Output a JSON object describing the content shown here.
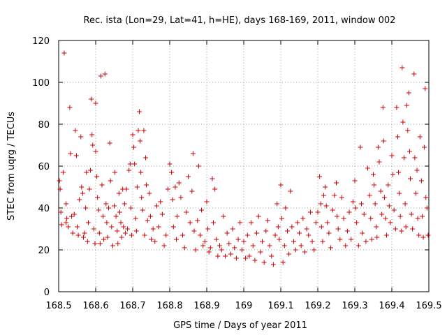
{
  "chart_data": {
    "type": "scatter",
    "title": "Rec. ista (Lon=29, Lat=41, h=HE), days 168-169, 2011, window 002",
    "xlabel": "GPS time / Days of year 2011",
    "ylabel": "STEC from uqrg / TECUs",
    "xlim": [
      168.5,
      169.5
    ],
    "ylim": [
      0,
      120
    ],
    "xticks": [
      168.5,
      168.6,
      168.7,
      168.8,
      168.9,
      169,
      169.1,
      169.2,
      169.3,
      169.4,
      169.5
    ],
    "xtick_labels": [
      "168.5",
      "168.6",
      "168.7",
      "168.8",
      "168.9",
      "169",
      "169.1",
      "169.2",
      "169.3",
      "169.4",
      "169.5"
    ],
    "yticks": [
      0,
      20,
      40,
      60,
      80,
      100,
      120
    ],
    "ytick_labels": [
      "0",
      "20",
      "40",
      "60",
      "80",
      "100",
      "120"
    ],
    "grid": true,
    "legend": "none",
    "marker": "plus",
    "color": "#cc0000",
    "points": [
      [
        168.502,
        53
      ],
      [
        168.504,
        49
      ],
      [
        168.506,
        38
      ],
      [
        168.508,
        32
      ],
      [
        168.512,
        57
      ],
      [
        168.515,
        114
      ],
      [
        168.52,
        42
      ],
      [
        168.52,
        33
      ],
      [
        168.522,
        35
      ],
      [
        168.526,
        31
      ],
      [
        168.53,
        88
      ],
      [
        168.532,
        66
      ],
      [
        168.535,
        36
      ],
      [
        168.538,
        28
      ],
      [
        168.542,
        37
      ],
      [
        168.545,
        77
      ],
      [
        168.548,
        65
      ],
      [
        168.55,
        31
      ],
      [
        168.553,
        27
      ],
      [
        168.556,
        44
      ],
      [
        168.56,
        74
      ],
      [
        168.562,
        50
      ],
      [
        168.565,
        47
      ],
      [
        168.567,
        26
      ],
      [
        168.57,
        28
      ],
      [
        168.573,
        40
      ],
      [
        168.575,
        57
      ],
      [
        168.578,
        24
      ],
      [
        168.58,
        33
      ],
      [
        168.583,
        49
      ],
      [
        168.586,
        58
      ],
      [
        168.588,
        92
      ],
      [
        168.59,
        75
      ],
      [
        168.592,
        70
      ],
      [
        168.595,
        30
      ],
      [
        168.598,
        23
      ],
      [
        168.6,
        90
      ],
      [
        168.6,
        67
      ],
      [
        168.603,
        55
      ],
      [
        168.605,
        45
      ],
      [
        168.608,
        39
      ],
      [
        168.61,
        28
      ],
      [
        168.612,
        23
      ],
      [
        168.614,
        103
      ],
      [
        168.617,
        51
      ],
      [
        168.62,
        36
      ],
      [
        168.622,
        25
      ],
      [
        168.625,
        104
      ],
      [
        168.628,
        42
      ],
      [
        168.63,
        33
      ],
      [
        168.632,
        26
      ],
      [
        168.635,
        40
      ],
      [
        168.638,
        71
      ],
      [
        168.64,
        53
      ],
      [
        168.643,
        31
      ],
      [
        168.646,
        22
      ],
      [
        168.65,
        41
      ],
      [
        168.652,
        57
      ],
      [
        168.655,
        36
      ],
      [
        168.658,
        29
      ],
      [
        168.66,
        23
      ],
      [
        168.663,
        47
      ],
      [
        168.665,
        38
      ],
      [
        168.668,
        33
      ],
      [
        168.67,
        26
      ],
      [
        168.673,
        49
      ],
      [
        168.675,
        31
      ],
      [
        168.678,
        42
      ],
      [
        168.68,
        28
      ],
      [
        168.683,
        49
      ],
      [
        168.686,
        30
      ],
      [
        168.69,
        58
      ],
      [
        168.693,
        61
      ],
      [
        168.695,
        40
      ],
      [
        168.697,
        27
      ],
      [
        168.7,
        75
      ],
      [
        168.703,
        69
      ],
      [
        168.705,
        61
      ],
      [
        168.708,
        35
      ],
      [
        168.71,
        29
      ],
      [
        168.712,
        50
      ],
      [
        168.715,
        77
      ],
      [
        168.718,
        86
      ],
      [
        168.72,
        72
      ],
      [
        168.722,
        57
      ],
      [
        168.724,
        45
      ],
      [
        168.727,
        39
      ],
      [
        168.73,
        77
      ],
      [
        168.732,
        27
      ],
      [
        168.735,
        64
      ],
      [
        168.737,
        51
      ],
      [
        168.74,
        34
      ],
      [
        168.745,
        47
      ],
      [
        168.748,
        36
      ],
      [
        168.75,
        25
      ],
      [
        168.755,
        30
      ],
      [
        168.76,
        24
      ],
      [
        168.765,
        41
      ],
      [
        168.77,
        31
      ],
      [
        168.775,
        43
      ],
      [
        168.78,
        37
      ],
      [
        168.785,
        22
      ],
      [
        168.79,
        27
      ],
      [
        168.795,
        49
      ],
      [
        168.8,
        61
      ],
      [
        168.805,
        57
      ],
      [
        168.808,
        44
      ],
      [
        168.81,
        31
      ],
      [
        168.815,
        50
      ],
      [
        168.818,
        25
      ],
      [
        168.82,
        36
      ],
      [
        168.825,
        52
      ],
      [
        168.83,
        45
      ],
      [
        168.835,
        27
      ],
      [
        168.84,
        21
      ],
      [
        168.845,
        38
      ],
      [
        168.85,
        55
      ],
      [
        168.855,
        33
      ],
      [
        168.86,
        48
      ],
      [
        168.863,
        66
      ],
      [
        168.866,
        29
      ],
      [
        168.87,
        20
      ],
      [
        168.875,
        34
      ],
      [
        168.878,
        60
      ],
      [
        168.882,
        27
      ],
      [
        168.886,
        39
      ],
      [
        168.89,
        22
      ],
      [
        168.895,
        24
      ],
      [
        168.9,
        43
      ],
      [
        168.903,
        30
      ],
      [
        168.906,
        19
      ],
      [
        168.91,
        21
      ],
      [
        168.915,
        54
      ],
      [
        168.918,
        33
      ],
      [
        168.922,
        49
      ],
      [
        168.926,
        25
      ],
      [
        168.93,
        17
      ],
      [
        168.935,
        22
      ],
      [
        168.94,
        20
      ],
      [
        168.945,
        36
      ],
      [
        168.95,
        17
      ],
      [
        168.955,
        28
      ],
      [
        168.96,
        23
      ],
      [
        168.965,
        18
      ],
      [
        168.97,
        30
      ],
      [
        168.975,
        21
      ],
      [
        168.98,
        16
      ],
      [
        168.985,
        25
      ],
      [
        168.99,
        33
      ],
      [
        168.995,
        20
      ],
      [
        169.0,
        24
      ],
      [
        169.005,
        16
      ],
      [
        169.01,
        27
      ],
      [
        169.015,
        17
      ],
      [
        169.02,
        33
      ],
      [
        169.025,
        22
      ],
      [
        169.03,
        15
      ],
      [
        169.035,
        28
      ],
      [
        169.04,
        36
      ],
      [
        169.045,
        19
      ],
      [
        169.05,
        24
      ],
      [
        169.055,
        14
      ],
      [
        169.06,
        29
      ],
      [
        169.065,
        34
      ],
      [
        169.07,
        22
      ],
      [
        169.075,
        17
      ],
      [
        169.08,
        13
      ],
      [
        169.085,
        27
      ],
      [
        169.09,
        42
      ],
      [
        169.093,
        31
      ],
      [
        169.096,
        25
      ],
      [
        169.1,
        51
      ],
      [
        169.103,
        35
      ],
      [
        169.106,
        14
      ],
      [
        169.11,
        22
      ],
      [
        169.113,
        40
      ],
      [
        169.118,
        29
      ],
      [
        169.122,
        18
      ],
      [
        169.126,
        48
      ],
      [
        169.13,
        31
      ],
      [
        169.135,
        24
      ],
      [
        169.14,
        20
      ],
      [
        169.145,
        33
      ],
      [
        169.15,
        28
      ],
      [
        169.155,
        22
      ],
      [
        169.16,
        35
      ],
      [
        169.165,
        19
      ],
      [
        169.17,
        30
      ],
      [
        169.175,
        27
      ],
      [
        169.18,
        38
      ],
      [
        169.185,
        24
      ],
      [
        169.19,
        20
      ],
      [
        169.195,
        33
      ],
      [
        169.2,
        38
      ],
      [
        169.205,
        55
      ],
      [
        169.208,
        42
      ],
      [
        169.21,
        31
      ],
      [
        169.213,
        24
      ],
      [
        169.216,
        46
      ],
      [
        169.22,
        50
      ],
      [
        169.223,
        41
      ],
      [
        169.226,
        33
      ],
      [
        169.23,
        28
      ],
      [
        169.235,
        21
      ],
      [
        169.24,
        39
      ],
      [
        169.245,
        46
      ],
      [
        169.25,
        52
      ],
      [
        169.252,
        36
      ],
      [
        169.255,
        30
      ],
      [
        169.26,
        25
      ],
      [
        169.265,
        45
      ],
      [
        169.27,
        35
      ],
      [
        169.275,
        22
      ],
      [
        169.28,
        29
      ],
      [
        169.285,
        38
      ],
      [
        169.29,
        25
      ],
      [
        169.295,
        43
      ],
      [
        169.3,
        53
      ],
      [
        169.302,
        40
      ],
      [
        169.305,
        33
      ],
      [
        169.31,
        22
      ],
      [
        169.315,
        69
      ],
      [
        169.318,
        42
      ],
      [
        169.32,
        28
      ],
      [
        169.325,
        37
      ],
      [
        169.33,
        24
      ],
      [
        169.335,
        59
      ],
      [
        169.34,
        46
      ],
      [
        169.343,
        35
      ],
      [
        169.346,
        25
      ],
      [
        169.35,
        56
      ],
      [
        169.352,
        51
      ],
      [
        169.355,
        42
      ],
      [
        169.358,
        31
      ],
      [
        169.36,
        26
      ],
      [
        169.363,
        69
      ],
      [
        169.366,
        62
      ],
      [
        169.37,
        48
      ],
      [
        169.373,
        37
      ],
      [
        169.376,
        88
      ],
      [
        169.378,
        72
      ],
      [
        169.38,
        45
      ],
      [
        169.383,
        35
      ],
      [
        169.386,
        27
      ],
      [
        169.39,
        51
      ],
      [
        169.393,
        41
      ],
      [
        169.396,
        33
      ],
      [
        169.4,
        65
      ],
      [
        169.403,
        56
      ],
      [
        169.406,
        39
      ],
      [
        169.41,
        30
      ],
      [
        169.413,
        88
      ],
      [
        169.416,
        74
      ],
      [
        169.418,
        57
      ],
      [
        169.42,
        47
      ],
      [
        169.423,
        36
      ],
      [
        169.426,
        29
      ],
      [
        169.428,
        107
      ],
      [
        169.43,
        81
      ],
      [
        169.433,
        64
      ],
      [
        169.436,
        42
      ],
      [
        169.438,
        31
      ],
      [
        169.44,
        89
      ],
      [
        169.443,
        77
      ],
      [
        169.446,
        95
      ],
      [
        169.448,
        67
      ],
      [
        169.45,
        54
      ],
      [
        169.453,
        37
      ],
      [
        169.456,
        30
      ],
      [
        169.46,
        104
      ],
      [
        169.462,
        64
      ],
      [
        169.465,
        47
      ],
      [
        169.468,
        58
      ],
      [
        169.47,
        35
      ],
      [
        169.473,
        27
      ],
      [
        169.476,
        74
      ],
      [
        169.48,
        53
      ],
      [
        169.482,
        36
      ],
      [
        169.485,
        26
      ],
      [
        169.488,
        69
      ],
      [
        169.49,
        97
      ],
      [
        169.492,
        45
      ],
      [
        169.495,
        40
      ],
      [
        169.498,
        27
      ]
    ]
  }
}
